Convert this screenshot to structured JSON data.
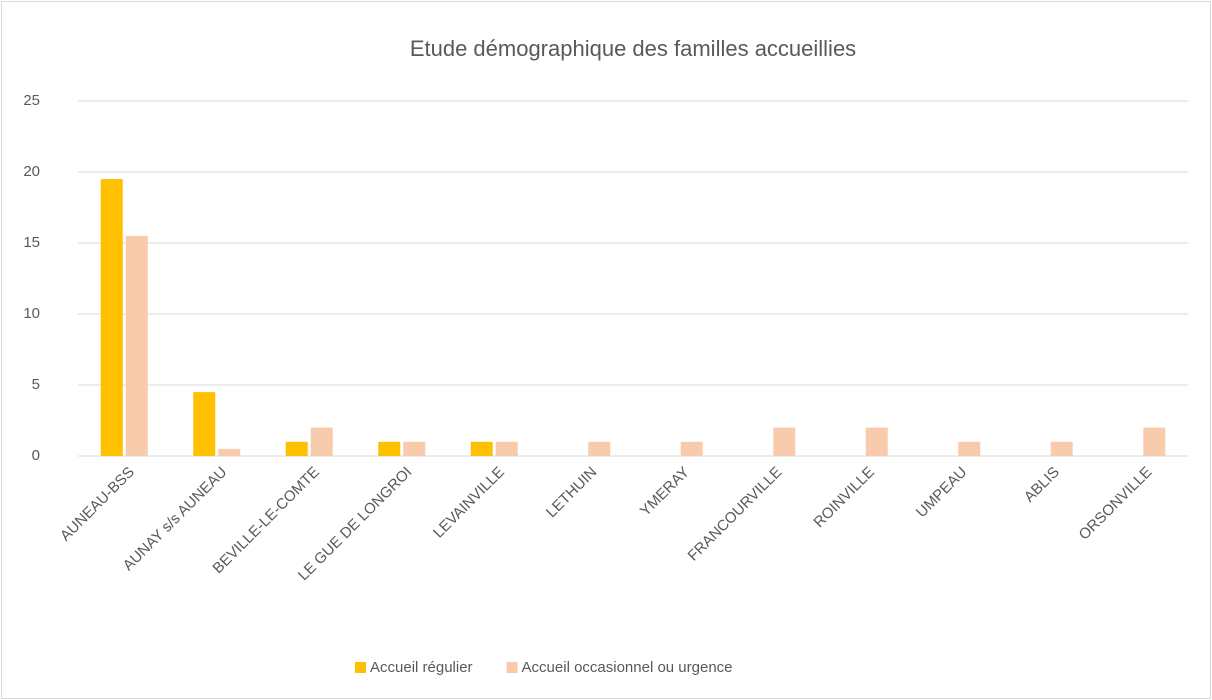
{
  "chart_data": {
    "type": "bar",
    "title": "Etude démographique des familles accueillies",
    "categories": [
      "AUNEAU-BSS",
      "AUNAY s/s AUNEAU",
      "BEVILLE-LE-COMTE",
      "LE GUE DE LONGROI",
      "LEVAINVILLE",
      "LETHUIN",
      "YMERAY",
      "FRANCOURVILLE",
      "ROINVILLE",
      "UMPEAU",
      "ABLIS",
      "ORSONVILLE"
    ],
    "series": [
      {
        "name": "Accueil régulier",
        "color": "#FFC000",
        "values": [
          19.5,
          4.5,
          1,
          1,
          1,
          0,
          0,
          0,
          0,
          0,
          0,
          0
        ]
      },
      {
        "name": "Accueil occasionnel ou urgence",
        "color": "#F8CBAD",
        "values": [
          15.5,
          0.5,
          2,
          1,
          1,
          1,
          1,
          2,
          2,
          1,
          1,
          2
        ]
      }
    ],
    "ylim": [
      0,
      25
    ],
    "yticks": [
      0,
      5,
      10,
      15,
      20,
      25
    ],
    "grid": true,
    "legend": "bottom"
  }
}
